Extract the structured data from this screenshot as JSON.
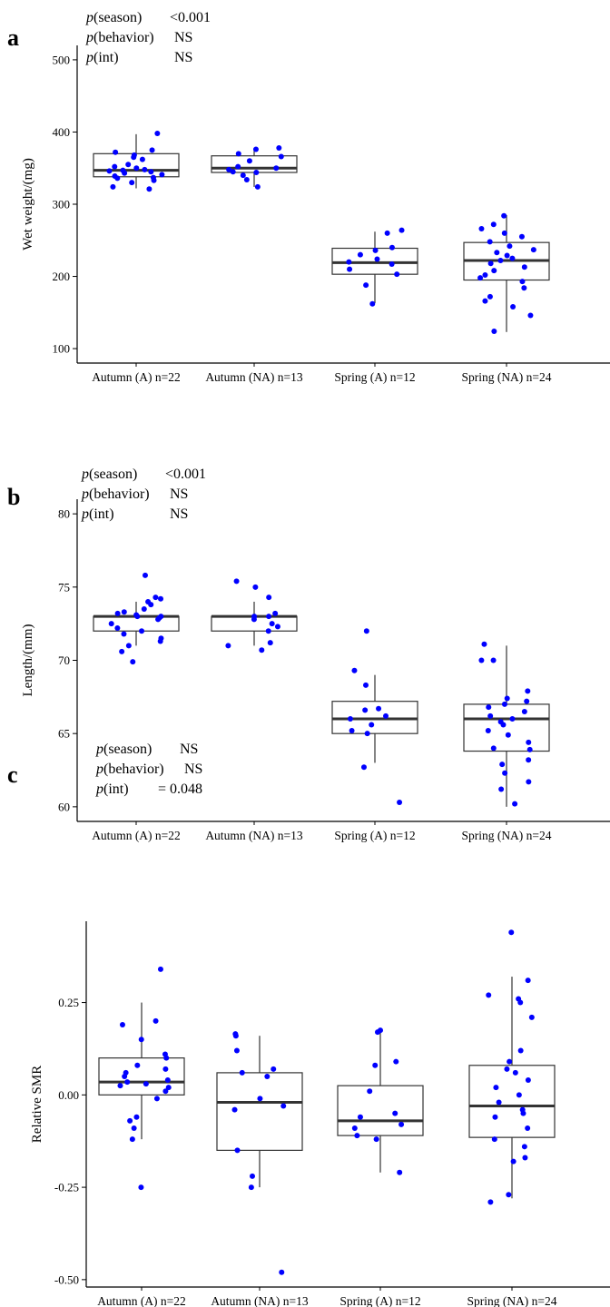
{
  "chart_data": [
    {
      "type": "box",
      "panel": "a",
      "ylabel": "Wet weight/(mg)",
      "ylim": [
        80,
        520
      ],
      "yticks": [
        100,
        200,
        300,
        400,
        500
      ],
      "annotations": [
        {
          "term": "season",
          "value": "<0.001"
        },
        {
          "term": "behavior",
          "value": "NS"
        },
        {
          "term": "int",
          "value": "NS"
        }
      ],
      "groups": [
        {
          "label": "Autumn (A) n=22",
          "q1": 338,
          "median": 347,
          "q3": 370,
          "whisker_low": 322,
          "whisker_high": 397,
          "points": [
            321,
            324,
            330,
            333,
            336,
            337,
            339,
            341,
            343,
            345,
            346,
            347,
            348,
            350,
            352,
            355,
            362,
            365,
            368,
            372,
            375,
            398
          ]
        },
        {
          "label": "Autumn (NA) n=13",
          "q1": 344,
          "median": 350,
          "q3": 367,
          "whisker_low": 324,
          "whisker_high": 378,
          "points": [
            324,
            334,
            340,
            344,
            345,
            348,
            350,
            352,
            360,
            366,
            370,
            376,
            378
          ]
        },
        {
          "label": "Spring (A) n=12",
          "q1": 203,
          "median": 219,
          "q3": 239,
          "whisker_low": 163,
          "whisker_high": 262,
          "points": [
            162,
            188,
            203,
            210,
            217,
            220,
            224,
            230,
            236,
            240,
            260,
            264
          ]
        },
        {
          "label": "Spring (NA) n=24",
          "q1": 195,
          "median": 222,
          "q3": 247,
          "whisker_low": 123,
          "whisker_high": 285,
          "points": [
            124,
            146,
            158,
            166,
            172,
            184,
            193,
            198,
            202,
            208,
            213,
            218,
            222,
            225,
            229,
            233,
            237,
            242,
            248,
            255,
            260,
            266,
            272,
            284
          ]
        }
      ]
    },
    {
      "type": "box",
      "panel": "b",
      "ylabel": "Length/(mm)",
      "ylim": [
        59,
        81
      ],
      "yticks": [
        60,
        65,
        70,
        75,
        80
      ],
      "annotations": [
        {
          "term": "season",
          "value": "<0.001"
        },
        {
          "term": "behavior",
          "value": "NS"
        },
        {
          "term": "int",
          "value": "NS"
        }
      ],
      "groups": [
        {
          "label": "Autumn (A) n=22",
          "q1": 72,
          "median": 73,
          "q3": 73,
          "whisker_low": 71,
          "whisker_high": 74,
          "points": [
            69.9,
            70.6,
            71.0,
            71.3,
            71.5,
            71.8,
            72.0,
            72.2,
            72.5,
            72.8,
            72.9,
            73.0,
            73.0,
            73.1,
            73.2,
            73.3,
            73.5,
            73.8,
            74.0,
            74.2,
            74.3,
            75.8
          ]
        },
        {
          "label": "Autumn (NA) n=13",
          "q1": 72,
          "median": 73,
          "q3": 73,
          "whisker_low": 71,
          "whisker_high": 74,
          "points": [
            70.7,
            71.0,
            71.2,
            72.0,
            72.3,
            72.5,
            72.8,
            73.0,
            73.0,
            73.2,
            74.3,
            75.0,
            75.4
          ]
        },
        {
          "label": "Spring (A) n=12",
          "q1": 65,
          "median": 66,
          "q3": 67.2,
          "whisker_low": 63,
          "whisker_high": 69,
          "points": [
            60.3,
            62.7,
            65.0,
            65.2,
            65.6,
            66.0,
            66.2,
            66.6,
            66.7,
            68.3,
            69.3,
            72.0
          ]
        },
        {
          "label": "Spring (NA) n=24",
          "q1": 63.8,
          "median": 66,
          "q3": 67,
          "whisker_low": 60,
          "whisker_high": 71,
          "points": [
            60.2,
            61.2,
            61.7,
            62.3,
            62.9,
            63.2,
            63.9,
            64.0,
            64.4,
            64.9,
            65.2,
            65.6,
            65.8,
            66.0,
            66.2,
            66.5,
            66.8,
            67.0,
            67.2,
            67.4,
            67.9,
            70.0,
            70.0,
            71.1
          ]
        }
      ]
    },
    {
      "type": "box",
      "panel": "c",
      "ylabel": "Relative SMR",
      "ylim": [
        -0.52,
        0.47
      ],
      "yticks": [
        -0.5,
        -0.25,
        0.0,
        0.25
      ],
      "ytick_labels": [
        "-0.50",
        "-0.25",
        "0.00",
        "0.25"
      ],
      "annotations": [
        {
          "term": "season",
          "value": "NS"
        },
        {
          "term": "behavior",
          "value": "NS"
        },
        {
          "term": "int",
          "value": "= 0.048"
        }
      ],
      "groups": [
        {
          "label": "Autumn (A) n=22",
          "q1": 0.0,
          "median": 0.035,
          "q3": 0.1,
          "whisker_low": -0.12,
          "whisker_high": 0.25,
          "points": [
            -0.25,
            -0.12,
            -0.09,
            -0.07,
            -0.06,
            -0.01,
            0.01,
            0.02,
            0.025,
            0.03,
            0.035,
            0.04,
            0.05,
            0.06,
            0.07,
            0.08,
            0.1,
            0.11,
            0.15,
            0.19,
            0.2,
            0.34
          ]
        },
        {
          "label": "Autumn (NA) n=13",
          "q1": -0.15,
          "median": -0.02,
          "q3": 0.06,
          "whisker_low": -0.25,
          "whisker_high": 0.16,
          "points": [
            -0.48,
            -0.25,
            -0.22,
            -0.15,
            -0.04,
            -0.03,
            -0.01,
            0.05,
            0.06,
            0.07,
            0.12,
            0.16,
            0.165
          ]
        },
        {
          "label": "Spring (A) n=12",
          "q1": -0.11,
          "median": -0.07,
          "q3": 0.025,
          "whisker_low": -0.21,
          "whisker_high": 0.175,
          "points": [
            -0.21,
            -0.12,
            -0.11,
            -0.09,
            -0.08,
            -0.06,
            -0.05,
            0.01,
            0.08,
            0.09,
            0.17,
            0.175
          ]
        },
        {
          "label": "Spring (NA) n=24",
          "q1": -0.115,
          "median": -0.03,
          "q3": 0.08,
          "whisker_low": -0.28,
          "whisker_high": 0.32,
          "points": [
            -0.29,
            -0.27,
            -0.18,
            -0.17,
            -0.14,
            -0.12,
            -0.09,
            -0.06,
            -0.05,
            -0.04,
            -0.02,
            0.0,
            0.02,
            0.04,
            0.06,
            0.07,
            0.09,
            0.12,
            0.21,
            0.25,
            0.26,
            0.27,
            0.31,
            0.44
          ]
        }
      ]
    }
  ]
}
